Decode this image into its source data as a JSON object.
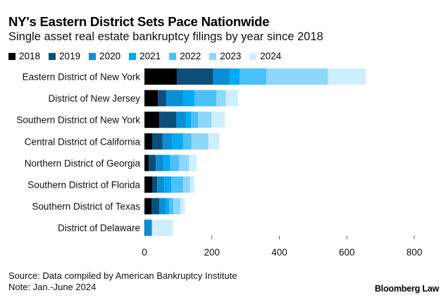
{
  "header": {
    "title": "NY's Eastern District Sets Pace Nationwide",
    "subtitle": "Single asset real estate bankruptcy filings by year since 2018"
  },
  "footer": {
    "source": "Source: Data compiled by American Bankruptcy Institute",
    "note": "Note: Jan.-June 2024",
    "brand": "Bloomberg Law"
  },
  "chart_data": {
    "type": "bar",
    "orientation": "horizontal",
    "stacked": true,
    "title": "NY's Eastern District Sets Pace Nationwide",
    "subtitle": "Single asset real estate bankruptcy filings by year since 2018",
    "xlabel": "",
    "ylabel": "",
    "xlim": [
      0,
      800
    ],
    "xticks": [
      0,
      200,
      400,
      600,
      800
    ],
    "grid": false,
    "legend_position": "top-left",
    "categories": [
      "Eastern District of New York",
      "District of New Jersey",
      "Southern District of New York",
      "Central District of California",
      "Northern District of Georgia",
      "Southern District of Florida",
      "Southern District of Texas",
      "District of Delaware"
    ],
    "series": [
      {
        "name": "2018",
        "color": "#000000",
        "values": [
          96,
          40,
          44,
          23,
          13,
          23,
          21,
          0
        ]
      },
      {
        "name": "2019",
        "color": "#0a4f7a",
        "values": [
          108,
          25,
          50,
          31,
          21,
          15,
          23,
          2
        ]
      },
      {
        "name": "2020",
        "color": "#0a8fd6",
        "values": [
          49,
          50,
          29,
          29,
          23,
          21,
          19,
          20
        ]
      },
      {
        "name": "2021",
        "color": "#00aaf5",
        "values": [
          29,
          34,
          15,
          31,
          19,
          21,
          10,
          0
        ]
      },
      {
        "name": "2022",
        "color": "#4ac1f7",
        "values": [
          80,
          64,
          21,
          25,
          27,
          34,
          13,
          0
        ]
      },
      {
        "name": "2023",
        "color": "#8fd6fb",
        "values": [
          182,
          28,
          40,
          50,
          29,
          21,
          21,
          0
        ]
      },
      {
        "name": "2024",
        "color": "#cdeefd",
        "values": [
          112,
          37,
          39,
          34,
          23,
          13,
          13,
          63
        ]
      }
    ]
  }
}
